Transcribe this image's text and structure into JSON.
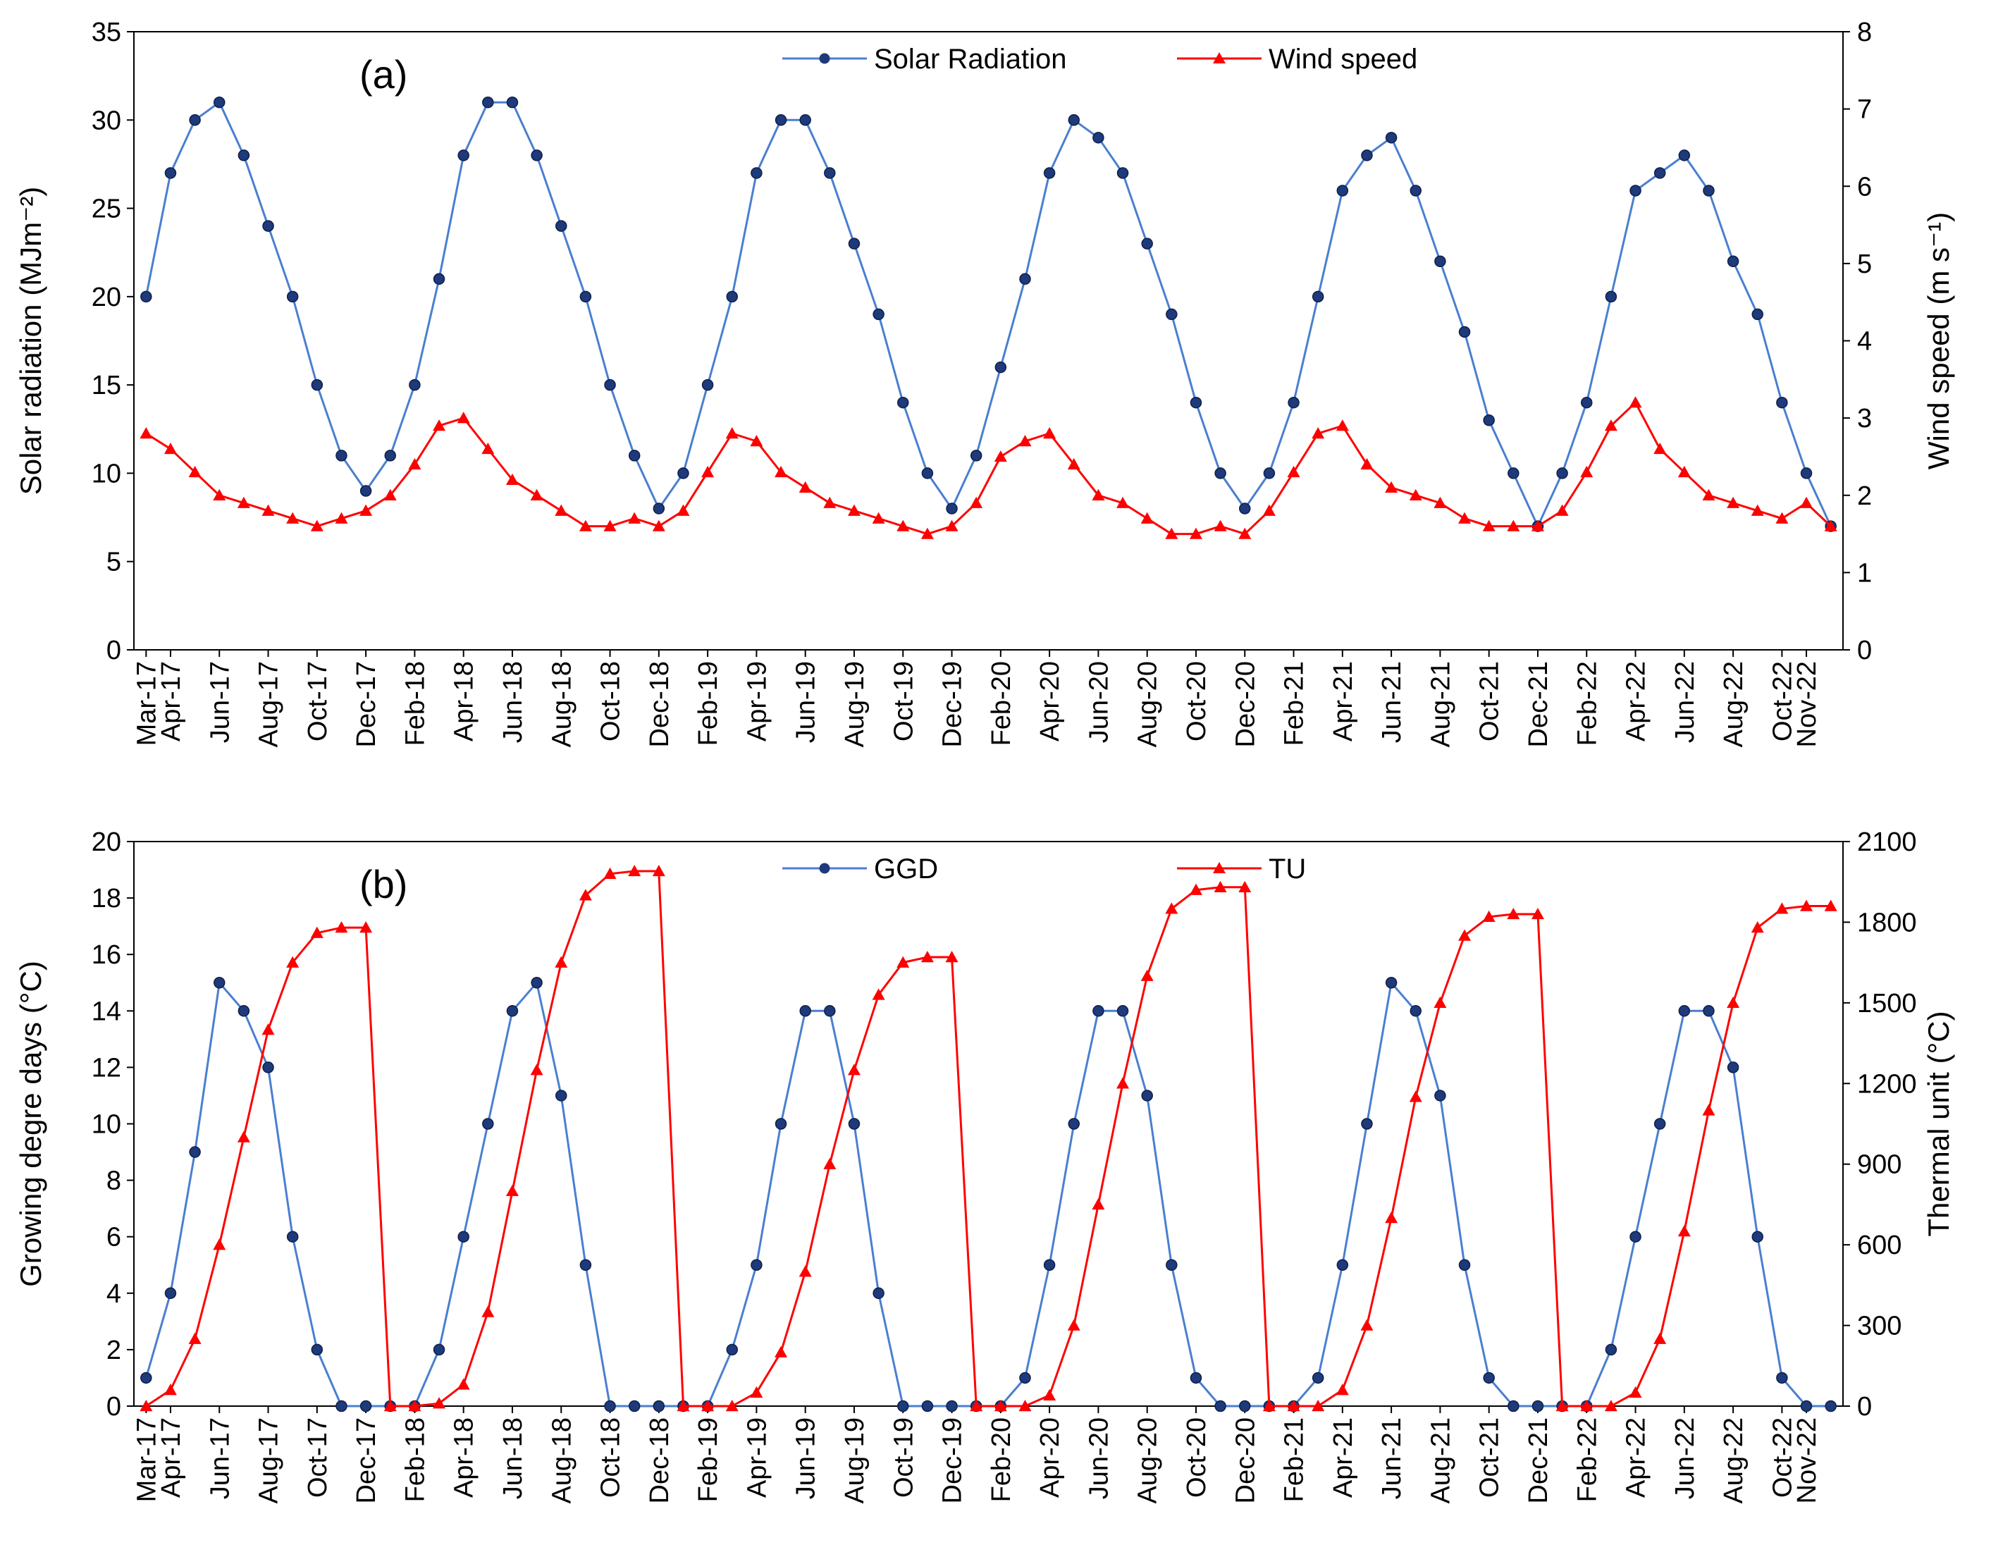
{
  "chart_data": [
    {
      "type": "line",
      "title": "(a)",
      "y_label": "Solar radiation (MJm⁻²)",
      "y2_label": "Wind speed (m s⁻¹)",
      "categories": [
        "Mar-17",
        "Apr-17",
        null,
        "Jun-17",
        null,
        "Aug-17",
        null,
        "Oct-17",
        null,
        "Dec-17",
        null,
        "Feb-18",
        null,
        "Apr-18",
        null,
        "Jun-18",
        null,
        "Aug-18",
        null,
        "Oct-18",
        null,
        "Dec-18",
        null,
        "Feb-19",
        null,
        "Apr-19",
        null,
        "Jun-19",
        null,
        "Aug-19",
        null,
        "Oct-19",
        null,
        "Dec-19",
        null,
        "Feb-20",
        null,
        "Apr-20",
        null,
        "Jun-20",
        null,
        "Aug-20",
        null,
        "Oct-20",
        null,
        "Dec-20",
        null,
        "Feb-21",
        null,
        "Apr-21",
        null,
        "Jun-21",
        null,
        "Aug-21",
        null,
        "Oct-21",
        null,
        "Dec-21",
        null,
        "Feb-22",
        null,
        "Apr-22",
        null,
        "Jun-22",
        null,
        "Aug-22",
        null,
        "Oct-22",
        "Nov-22",
        null
      ],
      "series": [
        {
          "name": "Solar Radiation",
          "color": "#1f3a7a",
          "line_color": "#4a7fd0",
          "marker": "circle",
          "values": [
            20,
            27,
            30,
            31,
            28,
            24,
            20,
            15,
            11,
            9,
            11,
            15,
            21,
            28,
            31,
            31,
            28,
            24,
            20,
            15,
            11,
            8,
            10,
            15,
            20,
            27,
            30,
            30,
            27,
            23,
            19,
            14,
            10,
            8,
            11,
            16,
            21,
            27,
            30,
            29,
            27,
            23,
            19,
            14,
            10,
            8,
            10,
            14,
            20,
            26,
            28,
            29,
            26,
            22,
            18,
            13,
            10,
            7,
            10,
            14,
            20,
            26,
            27,
            28,
            26,
            22,
            19,
            14,
            10,
            7
          ]
        },
        {
          "name": "Wind speed",
          "color": "#ff0000",
          "line_color": "#ff0000",
          "marker": "triangle",
          "axis": "y2",
          "values": [
            2.8,
            2.6,
            2.3,
            2.0,
            1.9,
            1.8,
            1.7,
            1.6,
            1.7,
            1.8,
            2.0,
            2.4,
            2.9,
            3.0,
            2.6,
            2.2,
            2.0,
            1.8,
            1.6,
            1.6,
            1.7,
            1.6,
            1.8,
            2.3,
            2.8,
            2.7,
            2.3,
            2.1,
            1.9,
            1.8,
            1.7,
            1.6,
            1.5,
            1.6,
            1.9,
            2.5,
            2.7,
            2.8,
            2.4,
            2.0,
            1.9,
            1.7,
            1.5,
            1.5,
            1.6,
            1.5,
            1.8,
            2.3,
            2.8,
            2.9,
            2.4,
            2.1,
            2.0,
            1.9,
            1.7,
            1.6,
            1.6,
            1.6,
            1.8,
            2.3,
            2.9,
            3.2,
            2.6,
            2.3,
            2.0,
            1.9,
            1.8,
            1.7,
            1.9,
            1.6
          ]
        }
      ],
      "ylim": [
        0,
        35
      ],
      "yticks": [
        0,
        5,
        10,
        15,
        20,
        25,
        30,
        35
      ],
      "y2lim": [
        0,
        8
      ],
      "y2ticks": [
        0,
        1,
        2,
        3,
        4,
        5,
        6,
        7,
        8
      ],
      "legend": "top"
    },
    {
      "type": "line",
      "title": "(b)",
      "y_label": "Growing degre days (°C)",
      "y2_label": "Thermal unit (°C)",
      "categories": [
        "Mar-17",
        "Apr-17",
        null,
        "Jun-17",
        null,
        "Aug-17",
        null,
        "Oct-17",
        null,
        "Dec-17",
        null,
        "Feb-18",
        null,
        "Apr-18",
        null,
        "Jun-18",
        null,
        "Aug-18",
        null,
        "Oct-18",
        null,
        "Dec-18",
        null,
        "Feb-19",
        null,
        "Apr-19",
        null,
        "Jun-19",
        null,
        "Aug-19",
        null,
        "Oct-19",
        null,
        "Dec-19",
        null,
        "Feb-20",
        null,
        "Apr-20",
        null,
        "Jun-20",
        null,
        "Aug-20",
        null,
        "Oct-20",
        null,
        "Dec-20",
        null,
        "Feb-21",
        null,
        "Apr-21",
        null,
        "Jun-21",
        null,
        "Aug-21",
        null,
        "Oct-21",
        null,
        "Dec-21",
        null,
        "Feb-22",
        null,
        "Apr-22",
        null,
        "Jun-22",
        null,
        "Aug-22",
        null,
        "Oct-22",
        "Nov-22",
        null
      ],
      "series": [
        {
          "name": "GGD",
          "color": "#1f3a7a",
          "line_color": "#4a7fd0",
          "marker": "circle",
          "values": [
            1,
            4,
            9,
            15,
            14,
            12,
            6,
            2,
            0,
            0,
            0,
            0,
            2,
            6,
            10,
            14,
            15,
            11,
            5,
            0,
            0,
            0,
            0,
            0,
            2,
            5,
            10,
            14,
            14,
            10,
            4,
            0,
            0,
            0,
            0,
            0,
            1,
            5,
            10,
            14,
            14,
            11,
            5,
            1,
            0,
            0,
            0,
            0,
            1,
            5,
            10,
            15,
            14,
            11,
            5,
            1,
            0,
            0,
            0,
            0,
            2,
            6,
            10,
            14,
            14,
            12,
            6,
            1,
            0,
            0
          ]
        },
        {
          "name": "TU",
          "color": "#ff0000",
          "line_color": "#ff0000",
          "marker": "triangle",
          "axis": "y2",
          "values": [
            0,
            60,
            250,
            600,
            1000,
            1400,
            1650,
            1760,
            1780,
            1780,
            0,
            0,
            10,
            80,
            350,
            800,
            1250,
            1650,
            1900,
            1980,
            1990,
            1990,
            0,
            0,
            0,
            50,
            200,
            500,
            900,
            1250,
            1530,
            1650,
            1670,
            1670,
            0,
            0,
            0,
            40,
            300,
            750,
            1200,
            1600,
            1850,
            1920,
            1930,
            1930,
            0,
            0,
            0,
            60,
            300,
            700,
            1150,
            1500,
            1750,
            1820,
            1830,
            1830,
            0,
            0,
            0,
            50,
            250,
            650,
            1100,
            1500,
            1780,
            1850,
            1860,
            1860
          ]
        }
      ],
      "ylim": [
        0,
        20
      ],
      "yticks": [
        0,
        2,
        4,
        6,
        8,
        10,
        12,
        14,
        16,
        18,
        20
      ],
      "y2lim": [
        0,
        2100
      ],
      "y2ticks": [
        0,
        300,
        600,
        900,
        1200,
        1500,
        1800,
        2100
      ],
      "legend": "top"
    }
  ]
}
